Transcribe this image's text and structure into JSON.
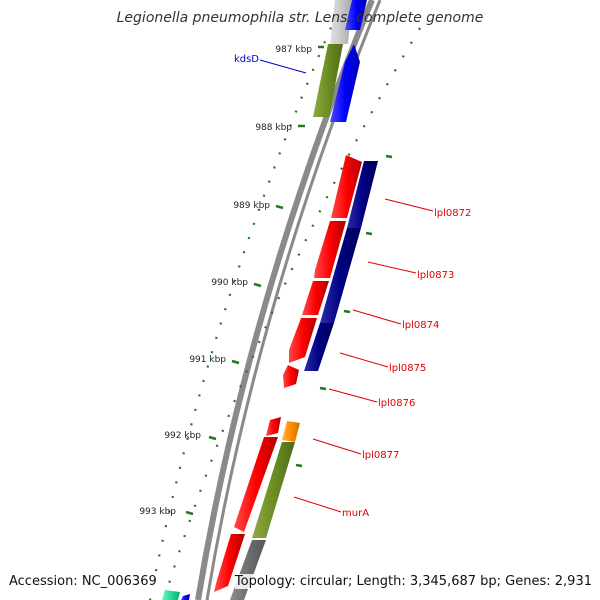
{
  "title": "Legionella pneumophila str. Lens, complete genome",
  "footer": {
    "accession": "Accession: NC_006369",
    "summary": "Topology: circular; Length: 3,345,687 bp; Genes: 2,931"
  },
  "colors": {
    "backbone": "#8a8a8a",
    "tick": "#1f7a1f",
    "gene_label": "#e00000",
    "kds_label": "#0000cc",
    "label_text": "#222222"
  },
  "scale_labels": [
    "987 kbp",
    "988 kbp",
    "989 kbp",
    "990 kbp",
    "991 kbp",
    "992 kbp",
    "993 kbp"
  ],
  "gene_labels": [
    {
      "name": "kdsD",
      "color": "#0000cc"
    },
    {
      "name": "lpl0872",
      "color": "#e00000"
    },
    {
      "name": "lpl0873",
      "color": "#e00000"
    },
    {
      "name": "lpl0874",
      "color": "#e00000"
    },
    {
      "name": "lpl0875",
      "color": "#e00000"
    },
    {
      "name": "lpl0876",
      "color": "#e00000"
    },
    {
      "name": "lpl0877",
      "color": "#e00000"
    },
    {
      "name": "murA",
      "color": "#e00000"
    }
  ]
}
